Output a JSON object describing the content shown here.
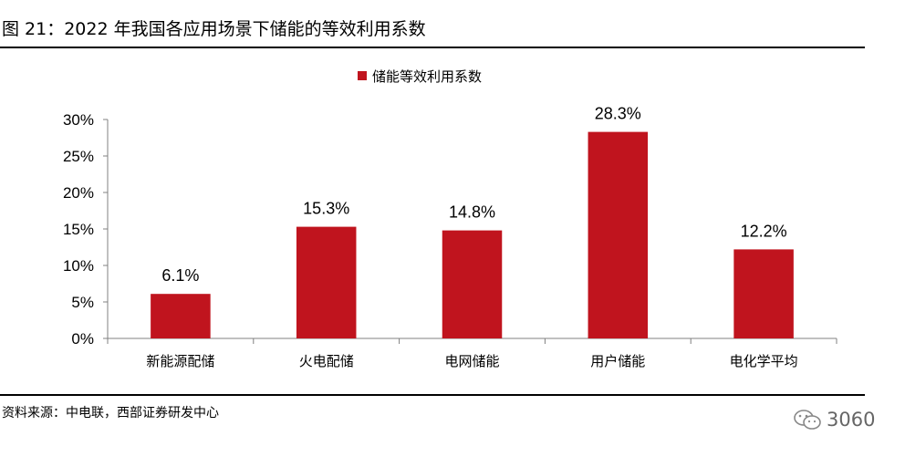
{
  "figure": {
    "title": "图 21：2022 年我国各应用场景下储能的等效利用系数",
    "source": "资料来源：中电联，西部证券研发中心",
    "watermark": "3060"
  },
  "chart_data": {
    "type": "bar",
    "title": "",
    "xlabel": "",
    "ylabel": "",
    "categories": [
      "新能源配储",
      "火电配储",
      "电网储能",
      "用户储能",
      "电化学平均"
    ],
    "series": [
      {
        "name": "储能等效利用系数",
        "values": [
          6.1,
          15.3,
          14.8,
          28.3,
          12.2
        ]
      }
    ],
    "data_labels": [
      "6.1%",
      "15.3%",
      "14.8%",
      "28.3%",
      "12.2%"
    ],
    "y_ticks": [
      "0%",
      "5%",
      "10%",
      "15%",
      "20%",
      "25%",
      "30%"
    ],
    "ylim": [
      0,
      30
    ],
    "grid": false,
    "legend": "top-center",
    "colors": {
      "bar": "#C0141E",
      "axis": "#808080"
    }
  }
}
